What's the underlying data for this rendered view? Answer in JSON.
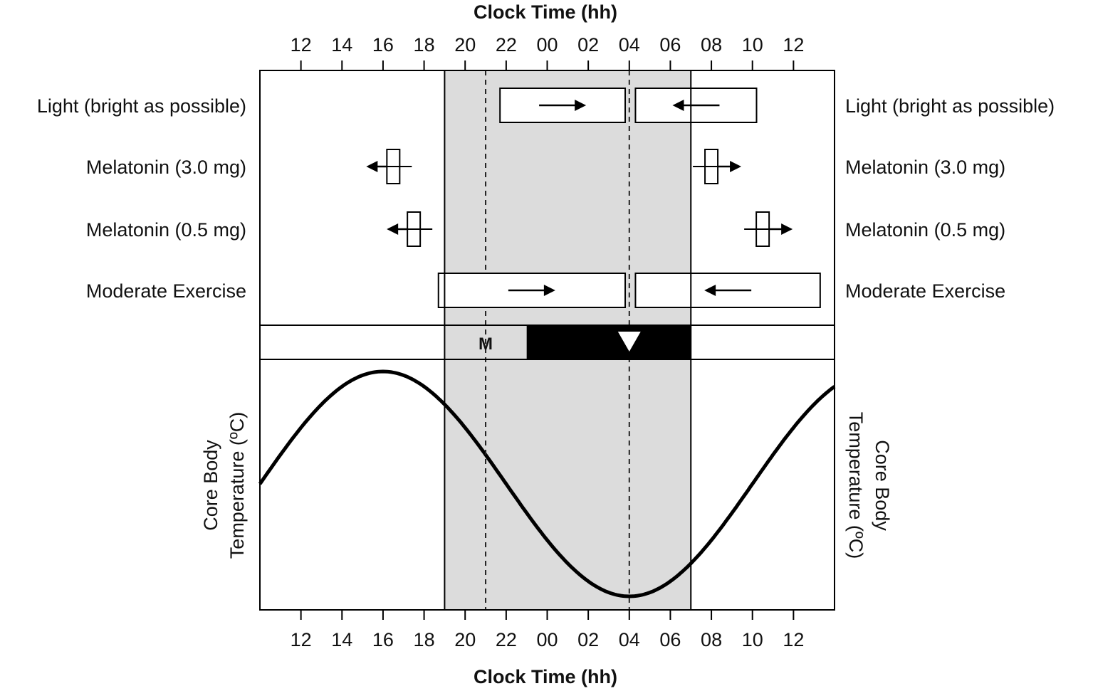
{
  "figure": {
    "top_axis_title": "Clock Time (hh)",
    "bottom_axis_title": "Clock Time (hh)",
    "y_axis_label_left": [
      "Core Body",
      "Temperature (ºC)"
    ],
    "y_axis_label_right": [
      "Core Body",
      "Temperature (ºC)"
    ],
    "sleep_band_label": "M",
    "colors": {
      "sleep_shading": "#dcdcdc",
      "sleep_bar": "#000000",
      "outline": "#000000",
      "curve": "#000000"
    }
  },
  "chart_data": {
    "type": "line",
    "x_axis": {
      "unit": "hours (continuous clock, 24 = 00)",
      "range": [
        10,
        38
      ],
      "tick_values": [
        12,
        14,
        16,
        18,
        20,
        22,
        24,
        26,
        28,
        30,
        32,
        34,
        36
      ],
      "tick_labels": [
        "12",
        "14",
        "16",
        "18",
        "20",
        "22",
        "00",
        "02",
        "04",
        "06",
        "08",
        "10",
        "12"
      ]
    },
    "shaded_region": {
      "start": 19,
      "end": 31
    },
    "dashed_lines": [
      21,
      28
    ],
    "sleep_bar": {
      "start": 23,
      "end": 31,
      "marker_at": 28
    },
    "rows": [
      {
        "left_label": "Light (bright as possible)",
        "right_label": "Light (bright as possible)",
        "boxes": [
          {
            "start": 21.7,
            "end": 27.8,
            "arrow": "right"
          },
          {
            "start": 28.3,
            "end": 34.2,
            "arrow": "left"
          }
        ]
      },
      {
        "left_label": "Melatonin (3.0 mg)",
        "right_label": "Melatonin (3.0 mg)",
        "doses": [
          {
            "at": 16.5,
            "arrow": "left"
          },
          {
            "at": 32.0,
            "arrow": "right"
          }
        ]
      },
      {
        "left_label": "Melatonin (0.5 mg)",
        "right_label": "Melatonin (0.5 mg)",
        "doses": [
          {
            "at": 17.5,
            "arrow": "left"
          },
          {
            "at": 34.5,
            "arrow": "right"
          }
        ]
      },
      {
        "left_label": "Moderate Exercise",
        "right_label": "Moderate Exercise",
        "boxes": [
          {
            "start": 18.7,
            "end": 27.8,
            "arrow": "right"
          },
          {
            "start": 28.3,
            "end": 37.3,
            "arrow": "left"
          }
        ]
      }
    ],
    "curve": {
      "description": "core body temperature rhythm",
      "peak_x": 16,
      "trough_x": 28,
      "period": 24
    }
  }
}
